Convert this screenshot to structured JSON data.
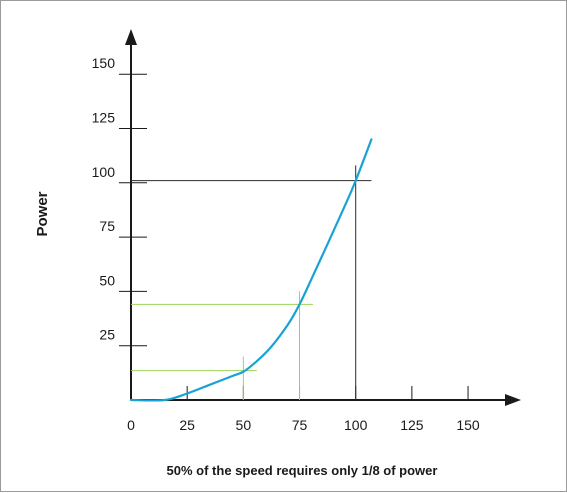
{
  "chart_data": {
    "type": "line",
    "ylabel": "Power",
    "xlabel": "",
    "caption": "50% of the speed requires only 1/8 of power",
    "xlim": [
      0,
      175
    ],
    "ylim": [
      0,
      170
    ],
    "x_ticks": [
      0,
      25,
      50,
      75,
      100,
      125,
      150
    ],
    "y_ticks": [
      25,
      50,
      75,
      100,
      125,
      150
    ],
    "x_tick_labels": [
      "0",
      "25",
      "50",
      "75",
      "100",
      "125",
      "150"
    ],
    "y_tick_labels": [
      "25",
      "50",
      "75",
      "100",
      "125",
      "150"
    ],
    "grid": false,
    "series": [
      {
        "color": "#1aa2d6",
        "x": [
          0,
          15,
          25,
          35,
          45,
          50,
          55,
          62,
          70,
          75,
          80,
          88,
          95,
          100,
          107
        ],
        "y": [
          0,
          0,
          3,
          7,
          11,
          13,
          17,
          24,
          35,
          44,
          55,
          73,
          89,
          101,
          120
        ]
      }
    ],
    "reference_lines": [
      {
        "color": "#9bd35a",
        "x": 50,
        "y": 13.5,
        "x_extent": [
          0,
          56
        ],
        "y_extent": [
          0,
          20
        ]
      },
      {
        "color": "#9bd35a",
        "x": 75,
        "y": 44,
        "x_extent": [
          0,
          81
        ],
        "y_extent": [
          0,
          50
        ]
      },
      {
        "color": "#2b2b2b",
        "x": 100,
        "y": 101,
        "x_extent": [
          0,
          107
        ],
        "y_extent": [
          0,
          108
        ]
      }
    ],
    "colors": {
      "axis": "#1a1a1a",
      "curve": "#1aa2d6",
      "guide_light": "#9bd35a",
      "guide_dark": "#2b2b2b"
    }
  }
}
